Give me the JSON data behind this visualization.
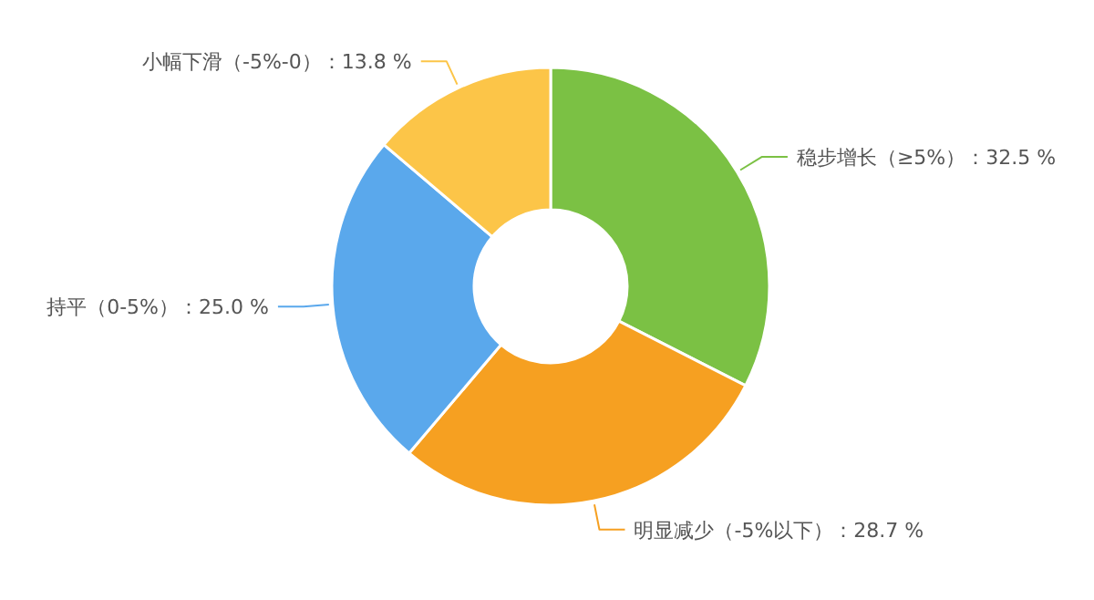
{
  "chart_data": {
    "type": "donut",
    "categories": [
      "稳步增长（≥5%）",
      "明显减少（-5%以下）",
      "持平（0-5%）",
      "小幅下滑（-5%-0）"
    ],
    "values": [
      32.5,
      28.7,
      25.0,
      13.8
    ],
    "colors": [
      "#7bc144",
      "#f6a021",
      "#5aa8ec",
      "#fcc548"
    ],
    "value_labels": [
      "32.5 %",
      "28.7 %",
      "25.0 %",
      "13.8 %"
    ]
  }
}
